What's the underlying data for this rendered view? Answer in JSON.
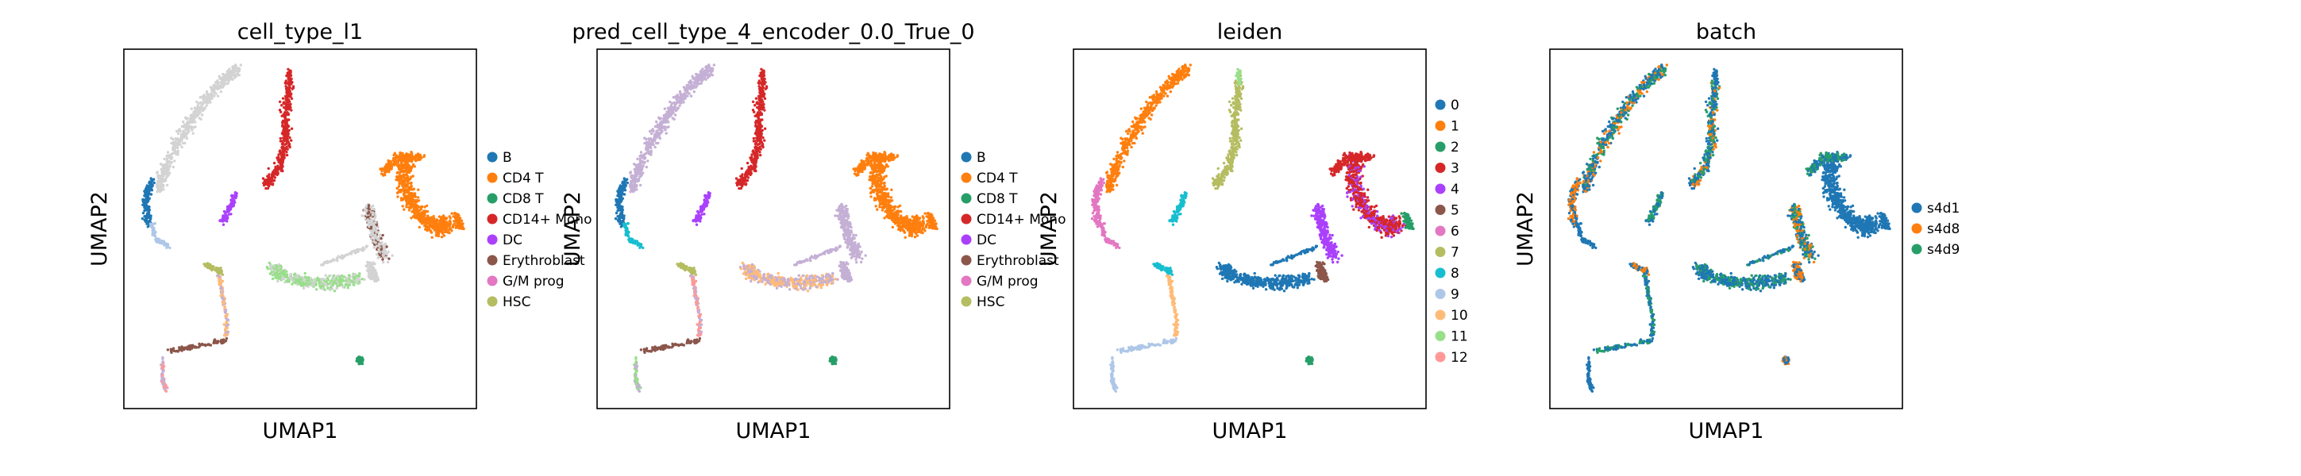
{
  "figure": {
    "layout": "1x4 UMAP scatter panels"
  },
  "chart_data": [
    {
      "type": "scatter",
      "title": "cell_type_l1",
      "xlabel": "UMAP1",
      "ylabel": "UMAP2",
      "grid": false,
      "legend_position": "right",
      "legend": [
        {
          "label": "B",
          "color": "#1f77b4"
        },
        {
          "label": "CD4 T",
          "color": "#ff7f0e"
        },
        {
          "label": "CD8 T",
          "color": "#279e68"
        },
        {
          "label": "CD14+ Mono",
          "color": "#d62728"
        },
        {
          "label": "DC",
          "color": "#aa40fc"
        },
        {
          "label": "Erythroblast",
          "color": "#8c564b"
        },
        {
          "label": "G/M prog",
          "color": "#e377c2"
        },
        {
          "label": "HSC",
          "color": "#b5bd61"
        }
      ],
      "background_color": "#d3d3d3"
    },
    {
      "type": "scatter",
      "title": "pred_cell_type_4_encoder_0.0_True_0",
      "xlabel": "UMAP1",
      "ylabel": "UMAP2",
      "grid": false,
      "legend_position": "right",
      "legend": [
        {
          "label": "B",
          "color": "#1f77b4"
        },
        {
          "label": "CD4 T",
          "color": "#ff7f0e"
        },
        {
          "label": "CD8 T",
          "color": "#279e68"
        },
        {
          "label": "CD14+ Mono",
          "color": "#d62728"
        },
        {
          "label": "DC",
          "color": "#aa40fc"
        },
        {
          "label": "Erythroblast",
          "color": "#8c564b"
        },
        {
          "label": "G/M prog",
          "color": "#e377c2"
        },
        {
          "label": "HSC",
          "color": "#b5bd61"
        }
      ],
      "background_color": "#c5b0d5"
    },
    {
      "type": "scatter",
      "title": "leiden",
      "xlabel": "UMAP1",
      "ylabel": "UMAP2",
      "grid": false,
      "legend_position": "right",
      "legend": [
        {
          "label": "0",
          "color": "#1f77b4"
        },
        {
          "label": "1",
          "color": "#ff7f0e"
        },
        {
          "label": "2",
          "color": "#279e68"
        },
        {
          "label": "3",
          "color": "#d62728"
        },
        {
          "label": "4",
          "color": "#aa40fc"
        },
        {
          "label": "5",
          "color": "#8c564b"
        },
        {
          "label": "6",
          "color": "#e377c2"
        },
        {
          "label": "7",
          "color": "#b5bd61"
        },
        {
          "label": "8",
          "color": "#17becf"
        },
        {
          "label": "9",
          "color": "#aec7e8"
        },
        {
          "label": "10",
          "color": "#ffbb78"
        },
        {
          "label": "11",
          "color": "#98df8a"
        },
        {
          "label": "12",
          "color": "#ff9896"
        }
      ]
    },
    {
      "type": "scatter",
      "title": "batch",
      "xlabel": "UMAP1",
      "ylabel": "UMAP2",
      "grid": false,
      "legend_position": "right",
      "legend": [
        {
          "label": "s4d1",
          "color": "#1f77b4"
        },
        {
          "label": "s4d8",
          "color": "#ff7f0e"
        },
        {
          "label": "s4d9",
          "color": "#279e68"
        }
      ]
    }
  ]
}
